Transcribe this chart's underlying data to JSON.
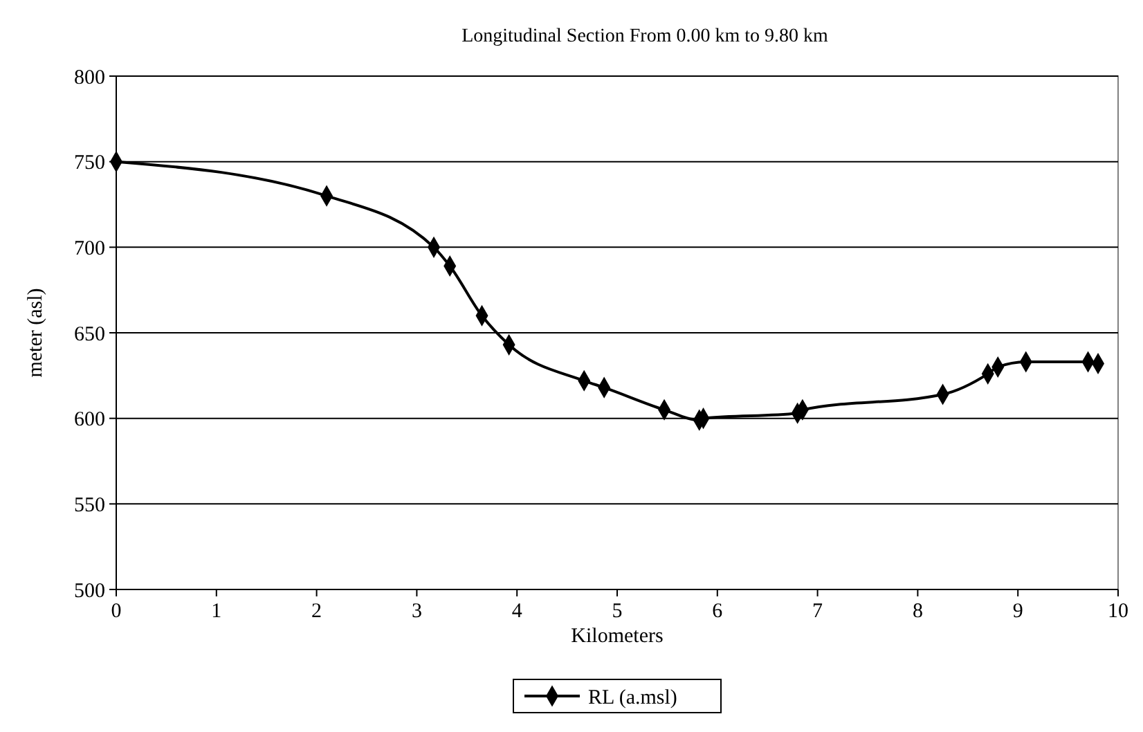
{
  "chart_data": {
    "type": "line",
    "title": "Longitudinal Section From 0.00 km to 9.80 km",
    "xlabel": "Kilometers",
    "ylabel": "meter (asl)",
    "x": [
      0,
      2.1,
      3.17,
      3.33,
      3.65,
      3.92,
      4.67,
      4.87,
      5.47,
      5.82,
      5.86,
      6.8,
      6.85,
      8.25,
      8.7,
      8.8,
      9.08,
      9.7,
      9.8
    ],
    "series": [
      {
        "name": "RL (a.msl)",
        "color": "#000000",
        "values": [
          750,
          730,
          700,
          689,
          660,
          643,
          622,
          618,
          605,
          599,
          600,
          603,
          605,
          614,
          626,
          630,
          633,
          633,
          632
        ]
      }
    ],
    "xlim": [
      0,
      10
    ],
    "xticks": [
      0,
      1,
      2,
      3,
      4,
      5,
      6,
      7,
      8,
      9,
      10
    ],
    "ylim": [
      500,
      800
    ],
    "yticks": [
      500,
      550,
      600,
      650,
      700,
      750,
      800
    ],
    "grid": "y",
    "legend": "bottom",
    "marker": "diamond",
    "line_style": "solid"
  }
}
